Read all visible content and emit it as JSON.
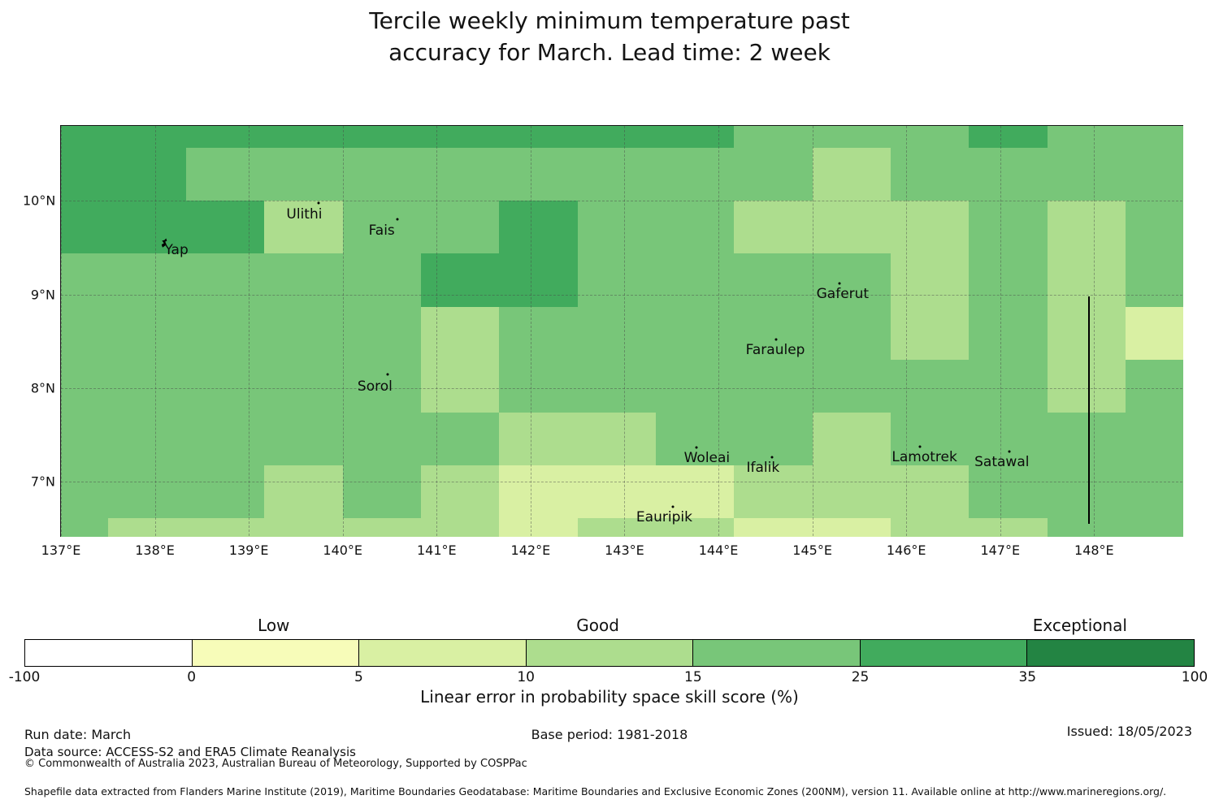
{
  "title": {
    "line1": "Tercile weekly minimum temperature past",
    "line2": "accuracy for March. Lead time: 2 week"
  },
  "footer": {
    "run_date": "Run date: March",
    "data_source": "Data source: ACCESS-S2 and ERA5 Climate Reanalysis",
    "copyright": "© Commonwealth of Australia 2023, Australian Bureau of Meteorology, Supported by COSPPac",
    "base_period": "Base period: 1981-2018",
    "issued": "Issued: 18/05/2023",
    "shapefile_note": "Shapefile data extracted from Flanders Marine Institute (2019), Maritime Boundaries Geodatabase: Maritime Boundaries and Exclusive Economic Zones (200NM), version 11. Available online at http://www.marineregions.org/."
  },
  "chart_data": {
    "type": "heatmap",
    "title": "Tercile weekly minimum temperature past accuracy for March. Lead time: 2 week",
    "colorbar_label": "Linear error in probability space skill score (%)",
    "x_axis_range_deg_east": [
      137.0,
      148.94
    ],
    "y_axis_range_deg_north": [
      6.42,
      10.8
    ],
    "lon_cell_edges_deg_e": [
      137.0,
      137.5,
      138.333,
      139.167,
      140.0,
      140.833,
      141.667,
      142.5,
      143.333,
      144.167,
      145.0,
      145.833,
      146.667,
      147.5,
      148.333,
      148.94
    ],
    "lat_cell_edges_deg_n_top_to_bottom": [
      10.8,
      10.565,
      10.0,
      9.435,
      8.87,
      8.305,
      7.74,
      7.175,
      6.61,
      6.42
    ],
    "class_value_ranges_pct": {
      "A": [
        -100,
        0
      ],
      "B": [
        0,
        5
      ],
      "C": [
        5,
        10
      ],
      "D": [
        10,
        15
      ],
      "E": [
        15,
        25
      ],
      "F": [
        25,
        35
      ],
      "G": [
        35,
        100
      ]
    },
    "class_colors": {
      "A": "#ffffff",
      "B": "#f7fcb9",
      "C": "#d9f0a3",
      "D": "#addd8e",
      "E": "#78c679",
      "F": "#41ab5d",
      "G": "#238443"
    },
    "grid_classes_top_to_bottom": [
      "FFFFFFFFFEEEFEE",
      "FFEEEEEEEEDEEEE",
      "FFFDEEFEEDDDEDE",
      "EEEEEFFEEEEDEDE",
      "EEEEEDEEEEEDEDC",
      "EEEEEDEEEEEEEDE",
      "EEEEEEDDEEDEEEE",
      "EEEDEDCCCDDDEEE",
      "EDDDDDCDDCCDDEE"
    ],
    "x_ticks": [
      {
        "label": "137°E",
        "lon": 137
      },
      {
        "label": "138°E",
        "lon": 138
      },
      {
        "label": "139°E",
        "lon": 139
      },
      {
        "label": "140°E",
        "lon": 140
      },
      {
        "label": "141°E",
        "lon": 141
      },
      {
        "label": "142°E",
        "lon": 142
      },
      {
        "label": "143°E",
        "lon": 143
      },
      {
        "label": "144°E",
        "lon": 144
      },
      {
        "label": "145°E",
        "lon": 145
      },
      {
        "label": "146°E",
        "lon": 146
      },
      {
        "label": "147°E",
        "lon": 147
      },
      {
        "label": "148°E",
        "lon": 148
      }
    ],
    "y_ticks": [
      {
        "label": "10°N",
        "lat": 10
      },
      {
        "label": "9°N",
        "lat": 9
      },
      {
        "label": "8°N",
        "lat": 8
      },
      {
        "label": "7°N",
        "lat": 7
      }
    ],
    "grid_on": true,
    "islands": [
      {
        "name": "Yap",
        "label_x_pct": 10.3,
        "label_y_pct": 30.3,
        "dot_x_pct": 9.2,
        "dot_y_pct": 28.5,
        "marker": "island"
      },
      {
        "name": "Ulithi",
        "label_x_pct": 21.7,
        "label_y_pct": 21.6,
        "dot_x_pct": 23.0,
        "dot_y_pct": 18.8,
        "marker": "dot"
      },
      {
        "name": "Fais",
        "label_x_pct": 28.6,
        "label_y_pct": 25.5,
        "dot_x_pct": 30.0,
        "dot_y_pct": 22.8,
        "marker": "dot"
      },
      {
        "name": "Sorol",
        "label_x_pct": 28.0,
        "label_y_pct": 63.6,
        "dot_x_pct": 29.1,
        "dot_y_pct": 60.6,
        "marker": "dot"
      },
      {
        "name": "Gaferut",
        "label_x_pct": 69.7,
        "label_y_pct": 41.0,
        "dot_x_pct": 69.4,
        "dot_y_pct": 38.4,
        "marker": "dot"
      },
      {
        "name": "Faraulep",
        "label_x_pct": 63.7,
        "label_y_pct": 54.7,
        "dot_x_pct": 63.8,
        "dot_y_pct": 52.1,
        "marker": "dot"
      },
      {
        "name": "Woleai",
        "label_x_pct": 57.6,
        "label_y_pct": 81.0,
        "dot_x_pct": 56.7,
        "dot_y_pct": 78.4,
        "marker": "dot"
      },
      {
        "name": "Ifalik",
        "label_x_pct": 62.6,
        "label_y_pct": 83.4,
        "dot_x_pct": 63.4,
        "dot_y_pct": 80.8,
        "marker": "dot"
      },
      {
        "name": "Eauripik",
        "label_x_pct": 53.8,
        "label_y_pct": 95.4,
        "dot_x_pct": 54.6,
        "dot_y_pct": 92.9,
        "marker": "dot"
      },
      {
        "name": "Lamotrek",
        "label_x_pct": 77.0,
        "label_y_pct": 80.8,
        "dot_x_pct": 76.6,
        "dot_y_pct": 78.2,
        "marker": "dot"
      },
      {
        "name": "Satawal",
        "label_x_pct": 83.9,
        "label_y_pct": 82.0,
        "dot_x_pct": 84.6,
        "dot_y_pct": 79.4,
        "marker": "dot"
      }
    ],
    "maritime_boundary_line": {
      "x_pct": 91.6,
      "y_from_pct": 41.6,
      "y_to_pct": 97.0
    },
    "colorbar": {
      "bounds": [
        -100,
        0,
        5,
        10,
        15,
        25,
        35,
        100
      ],
      "tick_labels": [
        "-100",
        "0",
        "5",
        "10",
        "15",
        "25",
        "35",
        "100"
      ],
      "colors": [
        "#ffffff",
        "#f7fcb9",
        "#d9f0a3",
        "#addd8e",
        "#78c679",
        "#41ab5d",
        "#238443"
      ],
      "categories": [
        {
          "label": "Low",
          "pct": 21.3
        },
        {
          "label": "Good",
          "pct": 49.0
        },
        {
          "label": "Exceptional",
          "pct": 90.2
        }
      ],
      "position": "bottom"
    }
  }
}
